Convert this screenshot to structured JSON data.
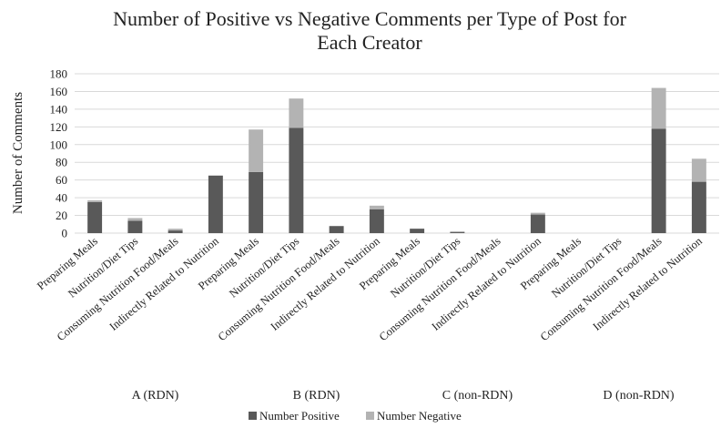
{
  "chart_data": {
    "type": "bar",
    "stacked": true,
    "title_lines": [
      "Number of Positive vs Negative Comments per Type of Post for",
      "Each Creator"
    ],
    "ylabel": "Number of Comments",
    "xlabel": "",
    "ylim": [
      0,
      180
    ],
    "yticks": [
      0,
      20,
      40,
      60,
      80,
      100,
      120,
      140,
      160,
      180
    ],
    "grid": true,
    "legend_position": "bottom",
    "groups": [
      {
        "label": "A (RDN)",
        "categories": [
          "Preparing Meals",
          "Nutrition/Diet Tips",
          "Consuming Nutrition Food/Meals",
          "Indirectly Related to Nutrition"
        ]
      },
      {
        "label": "B (RDN)",
        "categories": [
          "Preparing Meals",
          "Nutrition/Diet Tips",
          "Consuming Nutrition Food/Meals",
          "Indirectly Related to Nutrition"
        ]
      },
      {
        "label": "C (non-RDN)",
        "categories": [
          "Preparing Meals",
          "Nutrition/Diet Tips",
          "Consuming Nutrition Food/Meals",
          "Indirectly Related to Nutrition"
        ]
      },
      {
        "label": "D (non-RDN)",
        "categories": [
          "Preparing Meals",
          "Nutrition/Diet Tips",
          "Consuming Nutrition Food/Meals",
          "Indirectly Related to Nutrition"
        ]
      }
    ],
    "series": [
      {
        "name": "Number Positive",
        "color": "#595959",
        "values": [
          35,
          14,
          3,
          65,
          69,
          119,
          8,
          27,
          5,
          1,
          0,
          21,
          0,
          0,
          118,
          58
        ]
      },
      {
        "name": "Number Negative",
        "color": "#b3b3b3",
        "values": [
          2,
          3,
          2,
          0,
          48,
          33,
          0,
          4,
          0,
          1,
          0,
          2,
          0,
          0,
          46,
          26
        ]
      }
    ]
  }
}
